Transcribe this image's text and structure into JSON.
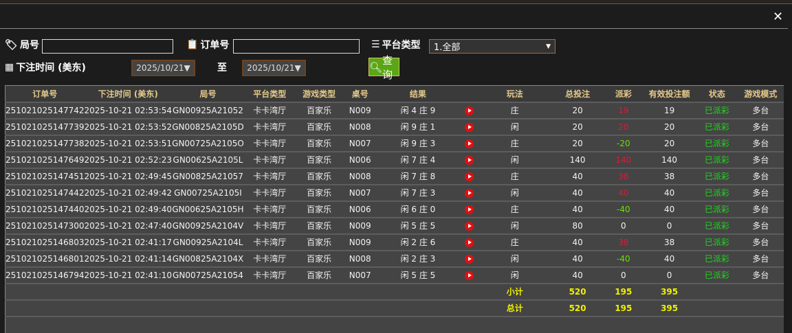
{
  "window": {
    "close_icon": "close-icon"
  },
  "filters": {
    "round_label": "局号",
    "round_value": "",
    "order_label": "订单号",
    "order_value": "",
    "platform_label": "平台类型",
    "platform_value": "1.全部",
    "time_label": "下注时间 (美东)",
    "date_from": "2025/10/21▼",
    "to_label": "至",
    "date_to": "2025/10/21▼",
    "query_label": "查询"
  },
  "colors": {
    "win": "#e0173c",
    "lose": "#66e000",
    "status": "#1ed81e",
    "header": "#e4c98a",
    "total": "#f0f000",
    "query_button": "#5aa615"
  },
  "table": {
    "headers": [
      "订单号",
      "下注时间 (美东)",
      "局号",
      "平台类型",
      "游戏类型",
      "桌号",
      "结果",
      "",
      "玩法",
      "总投注",
      "派彩",
      "有效投注额",
      "状态",
      "游戏模式"
    ],
    "rows": [
      [
        "251021025147742",
        "2025-10-21 02:53:54",
        "GN00925A21052",
        "卡卡湾厅",
        "百家乐",
        "N009",
        "闲 4 庄 9",
        "庄",
        "20",
        "19",
        "19",
        "已派彩",
        "多台",
        "win"
      ],
      [
        "251021025147739",
        "2025-10-21 02:53:52",
        "GN00825A2105D",
        "卡卡湾厅",
        "百家乐",
        "N008",
        "闲 9 庄 1",
        "闲",
        "20",
        "20",
        "20",
        "已派彩",
        "多台",
        "win"
      ],
      [
        "251021025147738",
        "2025-10-21 02:53:51",
        "GN00725A2105O",
        "卡卡湾厅",
        "百家乐",
        "N007",
        "闲 9 庄 3",
        "庄",
        "20",
        "-20",
        "20",
        "已派彩",
        "多台",
        "lose"
      ],
      [
        "251021025147649",
        "2025-10-21 02:52:23",
        "GN00625A2105L",
        "卡卡湾厅",
        "百家乐",
        "N006",
        "闲 7 庄 4",
        "闲",
        "140",
        "140",
        "140",
        "已派彩",
        "多台",
        "win"
      ],
      [
        "251021025147451",
        "2025-10-21 02:49:45",
        "GN00825A21057",
        "卡卡湾厅",
        "百家乐",
        "N008",
        "闲 7 庄 8",
        "庄",
        "40",
        "38",
        "38",
        "已派彩",
        "多台",
        "win"
      ],
      [
        "251021025147442",
        "2025-10-21 02:49:42",
        "GN00725A2105I",
        "卡卡湾厅",
        "百家乐",
        "N007",
        "闲 7 庄 3",
        "闲",
        "40",
        "40",
        "40",
        "已派彩",
        "多台",
        "win"
      ],
      [
        "251021025147440",
        "2025-10-21 02:49:40",
        "GN00625A2105H",
        "卡卡湾厅",
        "百家乐",
        "N006",
        "闲 6 庄 0",
        "庄",
        "40",
        "-40",
        "40",
        "已派彩",
        "多台",
        "lose"
      ],
      [
        "251021025147300",
        "2025-10-21 02:47:40",
        "GN00925A2104V",
        "卡卡湾厅",
        "百家乐",
        "N009",
        "闲 5 庄 5",
        "闲",
        "80",
        "0",
        "0",
        "已派彩",
        "多台",
        "tie"
      ],
      [
        "251021025146803",
        "2025-10-21 02:41:17",
        "GN00925A2104L",
        "卡卡湾厅",
        "百家乐",
        "N009",
        "闲 2 庄 6",
        "庄",
        "40",
        "38",
        "38",
        "已派彩",
        "多台",
        "win"
      ],
      [
        "251021025146801",
        "2025-10-21 02:41:14",
        "GN00825A2104X",
        "卡卡湾厅",
        "百家乐",
        "N008",
        "闲 2 庄 3",
        "闲",
        "40",
        "-40",
        "40",
        "已派彩",
        "多台",
        "lose"
      ],
      [
        "251021025146794",
        "2025-10-21 02:41:10",
        "GN00725A21054",
        "卡卡湾厅",
        "百家乐",
        "N007",
        "闲 5 庄 5",
        "闲",
        "40",
        "0",
        "0",
        "已派彩",
        "多台",
        "tie"
      ]
    ],
    "subtotal": {
      "label": "小计",
      "bet": "520",
      "payout": "195",
      "valid": "395"
    },
    "total": {
      "label": "总计",
      "bet": "520",
      "payout": "195",
      "valid": "395"
    }
  }
}
